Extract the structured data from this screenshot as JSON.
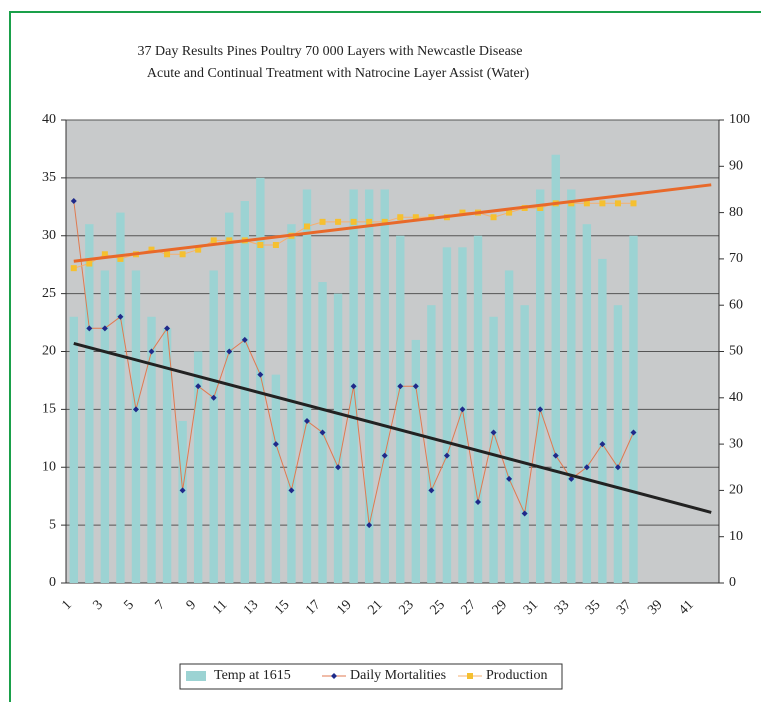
{
  "chart_data": {
    "type": "bar-line",
    "title": "37 Day Results Pines Poultry 70 000 Layers with Newcastle Disease",
    "subtitle": "Acute and Continual Treatment with Natrocine Layer Assist (Water)",
    "categories": [
      1,
      null,
      3,
      null,
      5,
      null,
      7,
      null,
      9,
      null,
      11,
      null,
      13,
      null,
      15,
      null,
      17,
      null,
      19,
      null,
      21,
      null,
      23,
      null,
      25,
      null,
      27,
      null,
      29,
      null,
      31,
      null,
      33,
      null,
      35,
      null,
      37,
      null,
      39,
      null,
      41,
      null
    ],
    "series": [
      {
        "name": "Temp at 1615",
        "type": "bar",
        "color": "#9cd3d3",
        "axis": "y",
        "values": [
          23,
          31,
          27,
          32,
          27,
          23,
          22,
          14,
          20,
          27,
          32,
          33,
          35,
          18,
          31,
          34,
          26,
          25,
          34,
          34,
          34,
          30,
          21,
          24,
          29,
          29,
          30,
          23,
          27,
          24,
          34,
          37,
          34,
          31,
          28,
          24,
          30,
          null,
          null,
          null,
          null,
          null
        ]
      },
      {
        "name": "Daily Mortalities",
        "type": "line",
        "color": "#e07a50",
        "marker_color": "#1f2a8a",
        "axis": "y",
        "values": [
          33,
          22,
          22,
          23,
          15,
          20,
          22,
          8,
          17,
          16,
          20,
          21,
          18,
          12,
          8,
          14,
          13,
          10,
          17,
          5,
          11,
          17,
          17,
          8,
          11,
          15,
          7,
          13,
          9,
          6,
          15,
          11,
          9,
          10,
          12,
          10,
          13,
          null,
          null,
          null,
          null,
          null
        ]
      },
      {
        "name": "Production",
        "type": "line",
        "color": "#f5b070",
        "marker_color": "#f5c030",
        "axis": "y2",
        "values": [
          68,
          69,
          71,
          70,
          71,
          72,
          71,
          71,
          72,
          74,
          74,
          74,
          73,
          73,
          75,
          77,
          78,
          78,
          78,
          78,
          78,
          79,
          79,
          79,
          79,
          80,
          80,
          79,
          80,
          81,
          81,
          82,
          82,
          82,
          82,
          82,
          82,
          null,
          null,
          null,
          null,
          null
        ]
      }
    ],
    "trendlines": [
      {
        "color": "#e8692a",
        "axis": "y2",
        "x": [
          1,
          42
        ],
        "values": [
          69.5,
          86
        ]
      },
      {
        "color": "#222222",
        "axis": "y",
        "x": [
          1,
          42
        ],
        "values": [
          20.7,
          6.1
        ]
      }
    ],
    "ylim": [
      0,
      40
    ],
    "yticks": [
      0,
      5,
      10,
      15,
      20,
      25,
      30,
      35,
      40
    ],
    "y2lim": [
      0,
      100
    ],
    "y2ticks": [
      0,
      10,
      20,
      30,
      40,
      50,
      60,
      70,
      80,
      90,
      100
    ],
    "grid": true,
    "legend": "bottom"
  }
}
